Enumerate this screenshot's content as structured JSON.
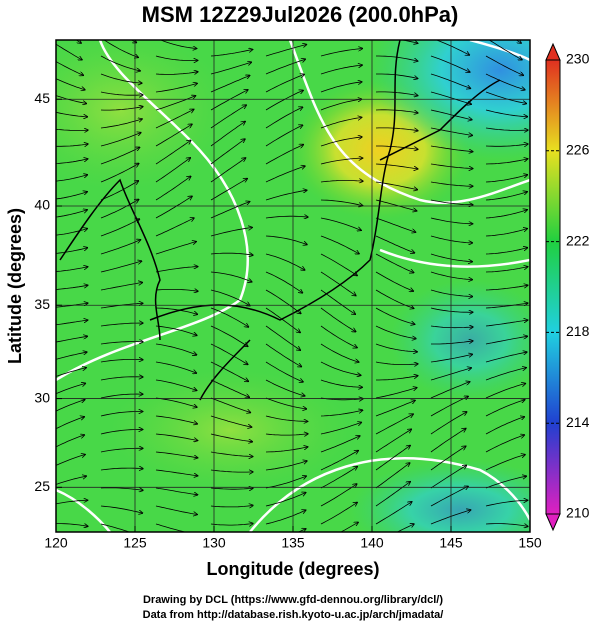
{
  "chart_data": {
    "type": "map",
    "title": "MSM 12Z29Jul2026 (200.0hPa)",
    "x_label": "Longitude (degrees)",
    "y_label": "Latitude  (degrees)",
    "projection": "mercator",
    "xlim": [
      120,
      150
    ],
    "xticks": [
      120,
      125,
      130,
      135,
      140,
      145,
      150
    ],
    "ylim": [
      22.4,
      47.6
    ],
    "yticks": [
      25,
      30,
      35,
      40,
      45
    ],
    "grid": true,
    "colorbar": {
      "lim": [
        210,
        230
      ],
      "ticks": [
        210,
        214,
        218,
        222,
        226,
        230
      ],
      "colors": [
        "#e020c0",
        "#2040d0",
        "#20d0e0",
        "#20d040",
        "#e8e020",
        "#e03020"
      ]
    },
    "footer": [
      "Drawing by DCL (https://www.gfd-dennou.org/library/dcl/)",
      "Data from http://database.rish.kyoto-u.ac.jp/arch/jmadata/"
    ]
  }
}
